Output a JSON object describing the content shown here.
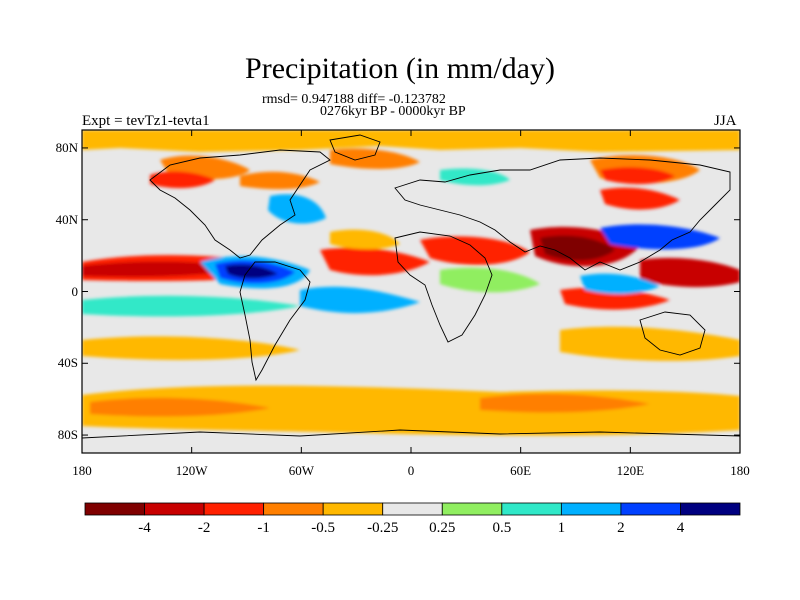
{
  "header": {
    "title": "Precipitation (in mm/day)",
    "stats": "rmsd= 0.947188 diff= -0.123782",
    "period": "0276kyr BP - 0000kyr BP",
    "experiment": "Expt = tevTz1-tevta1",
    "season": "JJA"
  },
  "axes": {
    "lat_labels": [
      "80N",
      "40N",
      "0",
      "40S",
      "80S"
    ],
    "lat_values": [
      80,
      40,
      0,
      -40,
      -80
    ],
    "lon_labels": [
      "180",
      "120W",
      "60W",
      "0",
      "60E",
      "120E",
      "180"
    ],
    "lon_values": [
      -180,
      -120,
      -60,
      0,
      60,
      120,
      180
    ]
  },
  "colorbar": {
    "labels": [
      "-4",
      "-2",
      "-1",
      "-0.5",
      "-0.25",
      "0.25",
      "0.5",
      "1",
      "2",
      "4"
    ],
    "colors": [
      "#7f0000",
      "#c80000",
      "#ff2000",
      "#ff7f00",
      "#ffb800",
      "#e8e8e8",
      "#90ee60",
      "#30e8c8",
      "#00b0ff",
      "#0040ff",
      "#000080"
    ]
  },
  "colors": {
    "background": "#e8e8e8",
    "coastline": "#000000"
  }
}
